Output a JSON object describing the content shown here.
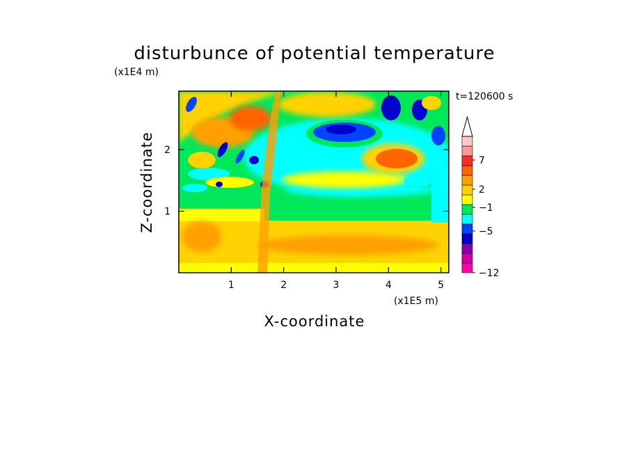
{
  "chart_data": {
    "type": "heatmap",
    "title": "disturbunce of potential temperature",
    "xlabel": "X-coordinate",
    "ylabel": "Z-coordinate",
    "x_scale_label": "(x1E5 m)",
    "y_scale_label": "(x1E4 m)",
    "time_label": "t=120600 s",
    "xlim": [
      0,
      5.15
    ],
    "ylim": [
      0,
      2.95
    ],
    "x_ticks": [
      "1",
      "2",
      "3",
      "4",
      "5"
    ],
    "y_ticks": [
      "1",
      "2"
    ],
    "colorbar": {
      "tick_labels": [
        "7",
        "2",
        "−1",
        "−5",
        "−12"
      ],
      "colors": [
        "#ff00aa",
        "#cc00aa",
        "#8800aa",
        "#0000cc",
        "#0044ff",
        "#00ffff",
        "#00e85a",
        "#ffff00",
        "#ffd200",
        "#ffa000",
        "#ff6400",
        "#ff2a2a",
        "#ff9999",
        "#ffc8c8"
      ]
    },
    "features": [
      {
        "x": 3.1,
        "z": 2.3,
        "value": -4
      },
      {
        "x": 4.1,
        "z": 1.9,
        "value": 4
      },
      {
        "x": 3.1,
        "z": 1.5,
        "value": 1
      },
      {
        "x": 2.3,
        "z": 1.05,
        "value": -1
      },
      {
        "x": 3.6,
        "z": 0.45,
        "value": 2
      },
      {
        "x": 1.0,
        "z": 2.3,
        "value": 3
      },
      {
        "x": 4.6,
        "z": 2.5,
        "value": -5
      },
      {
        "x": 1.6,
        "z": 1.5,
        "value": 2
      }
    ]
  }
}
